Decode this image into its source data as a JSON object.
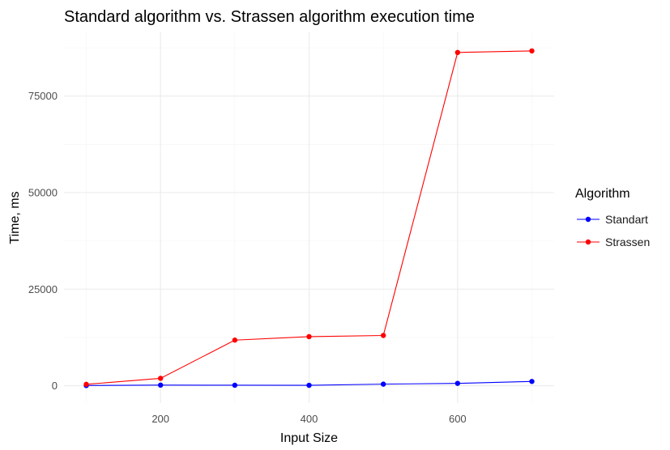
{
  "chart_data": {
    "type": "line",
    "title": "Standard algorithm vs. Strassen algorithm execution time",
    "xlabel": "Input Size",
    "ylabel": "Time, ms",
    "xlim": [
      70,
      730
    ],
    "ylim": [
      -4500,
      91500
    ],
    "x_ticks": [
      200,
      400,
      600
    ],
    "y_ticks": [
      0,
      25000,
      50000,
      75000
    ],
    "x_minor": [
      100,
      300,
      500,
      700
    ],
    "y_minor": [
      12500,
      37500,
      62500,
      87500
    ],
    "grid": true,
    "legend": {
      "title": "Algorithm",
      "position": "right"
    },
    "series": [
      {
        "name": "Standart",
        "color": "#0000ff",
        "x": [
          100,
          200,
          300,
          400,
          500,
          600,
          700
        ],
        "y": [
          40,
          150,
          120,
          100,
          400,
          600,
          1100
        ]
      },
      {
        "name": "Strassen",
        "color": "#ff0000",
        "x": [
          100,
          200,
          300,
          400,
          500,
          600,
          700
        ],
        "y": [
          350,
          1900,
          11800,
          12700,
          13000,
          86300,
          86700
        ]
      }
    ]
  }
}
